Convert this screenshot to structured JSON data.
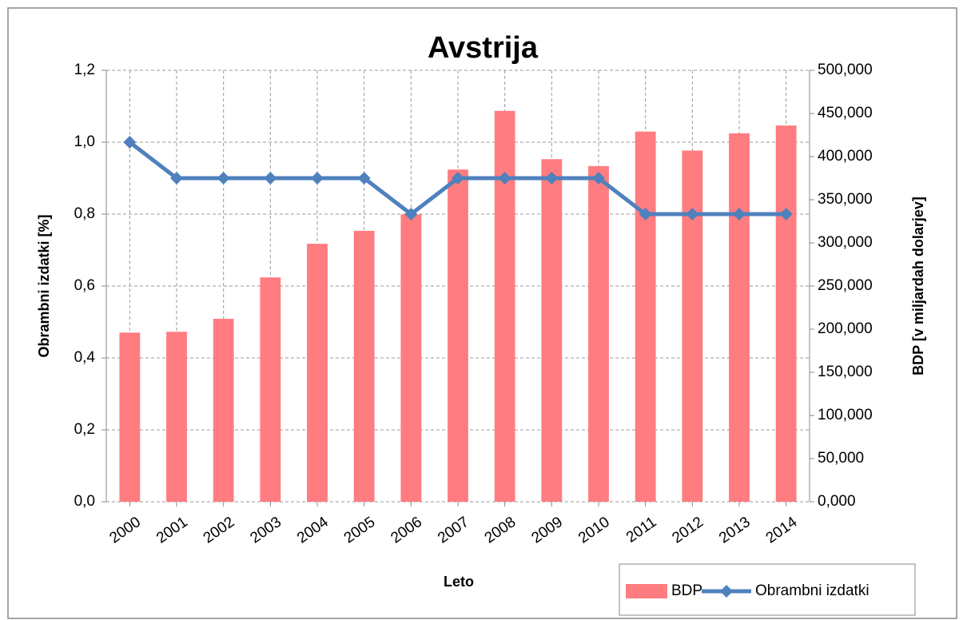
{
  "chart_data": {
    "type": "bar",
    "title": "Avstrija",
    "x_label": "Leto",
    "y_label": "Obrambni izdatki [%]",
    "y2_label": "BDP [v miljardah dolarjev]",
    "categories": [
      "2000",
      "2001",
      "2002",
      "2003",
      "2004",
      "2005",
      "2006",
      "2007",
      "2008",
      "2009",
      "2010",
      "2011",
      "2012",
      "2013",
      "2014"
    ],
    "series": [
      {
        "name": "BDP",
        "type": "bar",
        "axis": "y2",
        "color": "#ff7c80",
        "values": [
          196,
          197,
          212,
          260,
          299,
          314,
          333,
          385,
          453,
          397,
          389,
          429,
          407,
          427,
          436
        ]
      },
      {
        "name": "Obrambni izdatki",
        "type": "line",
        "color": "#4f81bd",
        "values": [
          1.0,
          0.9,
          0.9,
          0.9,
          0.9,
          0.9,
          0.8,
          0.9,
          0.9,
          0.9,
          0.9,
          0.8,
          0.8,
          0.8,
          0.8
        ]
      }
    ],
    "ylim": [
      0,
      1.2
    ],
    "yticks": [
      {
        "value": 0,
        "label": "0,0"
      },
      {
        "value": 0.2,
        "label": "0,2"
      },
      {
        "value": 0.4,
        "label": "0,4"
      },
      {
        "value": 0.6,
        "label": "0,6"
      },
      {
        "value": 0.8,
        "label": "0,8"
      },
      {
        "value": 1.0,
        "label": "1,0"
      },
      {
        "value": 1.2,
        "label": "1,2"
      }
    ],
    "y2lim": [
      0,
      500
    ],
    "y2ticks": [
      {
        "value": 0,
        "label": "0,000"
      },
      {
        "value": 50,
        "label": "50,000"
      },
      {
        "value": 100,
        "label": "100,000"
      },
      {
        "value": 150,
        "label": "150,000"
      },
      {
        "value": 200,
        "label": "200,000"
      },
      {
        "value": 250,
        "label": "250,000"
      },
      {
        "value": 300,
        "label": "300,000"
      },
      {
        "value": 350,
        "label": "350,000"
      },
      {
        "value": 400,
        "label": "400,000"
      },
      {
        "value": 450,
        "label": "450,000"
      },
      {
        "value": 500,
        "label": "500,000"
      }
    ],
    "grid": true,
    "legend": "bottom-right"
  }
}
